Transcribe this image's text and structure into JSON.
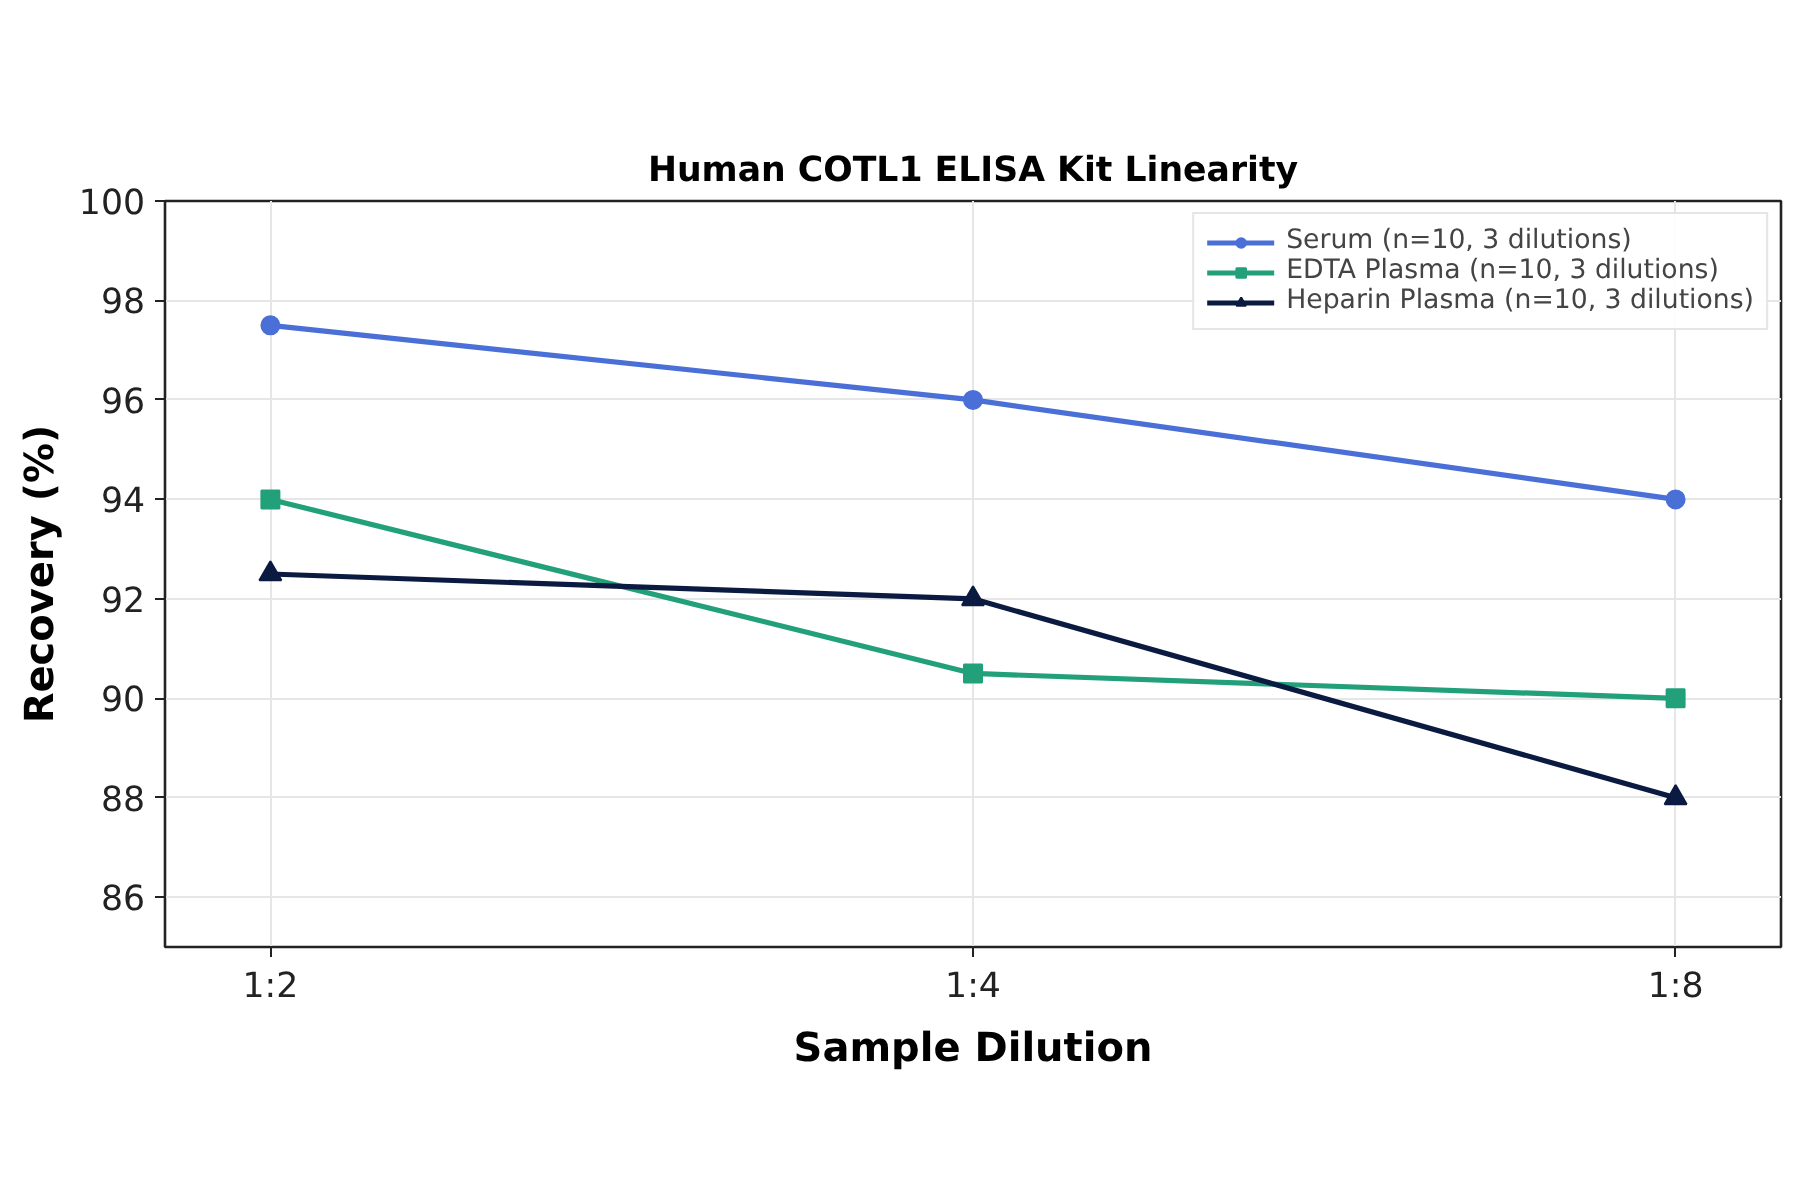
{
  "chart_data": {
    "type": "line",
    "title": "Human COTL1 ELISA Kit Linearity",
    "xlabel": "Sample Dilution",
    "ylabel": "Recovery (%)",
    "categories": [
      "1:2",
      "1:4",
      "1:8"
    ],
    "series": [
      {
        "name": "Serum (n=10, 3 dilutions)",
        "color": "#4a6fd6",
        "marker": "circle",
        "values": [
          97.5,
          96,
          94
        ]
      },
      {
        "name": "EDTA Plasma (n=10, 3 dilutions)",
        "color": "#22a079",
        "marker": "square",
        "values": [
          94,
          90.5,
          90
        ]
      },
      {
        "name": "Heparin Plasma (n=10, 3 dilutions)",
        "color": "#0b1a40",
        "marker": "triangle",
        "values": [
          92.5,
          92,
          88
        ]
      }
    ],
    "ylim": [
      85,
      100
    ],
    "yticks": [
      86,
      88,
      90,
      92,
      94,
      96,
      98,
      100
    ],
    "grid": true,
    "legend": "top right",
    "line_style": "solid"
  }
}
